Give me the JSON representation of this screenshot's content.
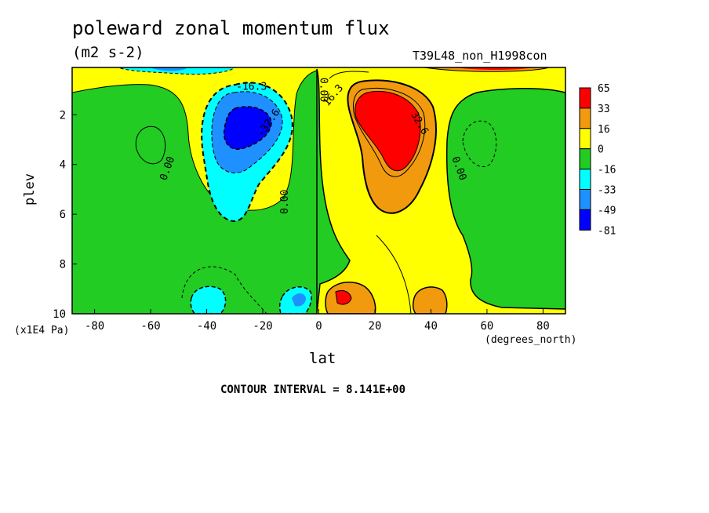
{
  "title": "poleward zonal momentum flux",
  "units": "(m2 s-2)",
  "run_label": "T39L48_non_H1998con",
  "contour_interval": "CONTOUR INTERVAL = 8.141E+00",
  "chart_data": {
    "type": "heatmap",
    "title": "poleward zonal momentum flux",
    "xlabel": "lat",
    "ylabel": "plev",
    "x_units": "(degrees_north)",
    "y_units": "(x1E4 Pa)",
    "xlim": [
      -88,
      88
    ],
    "ylim": [
      10,
      0.1
    ],
    "x_ticks": [
      -80,
      -60,
      -40,
      -20,
      0,
      20,
      40,
      60,
      80
    ],
    "y_ticks": [
      2,
      4,
      6,
      8,
      10
    ],
    "colorbar": {
      "labels": [
        "65",
        "33",
        "16",
        "0",
        "-16",
        "-33",
        "-49",
        "-81"
      ],
      "colors": [
        "#ff0000",
        "#f29a0e",
        "#ffff00",
        "#22cc22",
        "#00ffff",
        "#1e90ff",
        "#0000ff"
      ]
    },
    "contour_labels": [
      "-16.3",
      "-32.6",
      "0.00",
      "0.00",
      "0.00",
      "0.00",
      "16.3",
      "32.6"
    ],
    "features": [
      {
        "label": "negative maximum",
        "lat": -27,
        "plev": 2.6,
        "value": -81
      },
      {
        "label": "positive maximum",
        "lat": 25,
        "plev": 2.3,
        "value": 65
      },
      {
        "label": "near-surface negative",
        "lat": -40,
        "plev": 9.5,
        "value": -33
      },
      {
        "label": "near-surface negative",
        "lat": -9,
        "plev": 9.5,
        "value": -49
      },
      {
        "label": "near-surface positive",
        "lat": 9,
        "plev": 9.4,
        "value": 49
      },
      {
        "label": "near-surface positive",
        "lat": 38,
        "plev": 9.5,
        "value": 33
      }
    ]
  }
}
